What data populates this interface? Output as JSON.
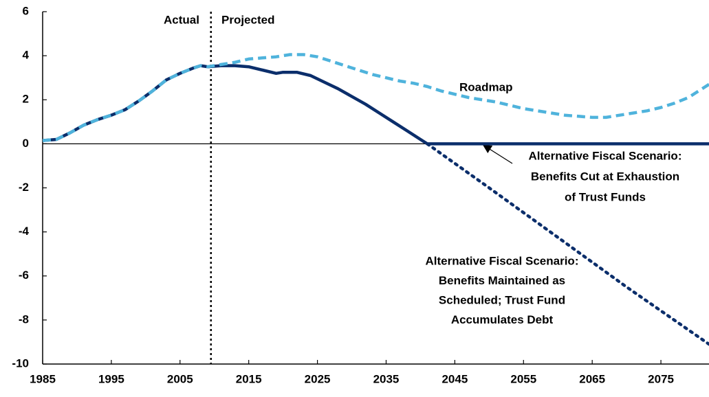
{
  "chart_data": {
    "type": "line",
    "xlim": [
      1985,
      2082
    ],
    "ylim": [
      -10,
      6
    ],
    "xticks": [
      1985,
      1995,
      2005,
      2015,
      2025,
      2035,
      2045,
      2055,
      2065,
      2075
    ],
    "yticks": [
      -10,
      -8,
      -6,
      -4,
      -2,
      0,
      2,
      4,
      6
    ],
    "divider_x": 2009.5,
    "series": [
      {
        "style": "solid",
        "color": "#0b2e6b",
        "x": [
          1985,
          1987,
          1989,
          1991,
          1993,
          1995,
          1997,
          1999,
          2001,
          2003,
          2005,
          2007,
          2008,
          2009,
          2011,
          2013,
          2015,
          2017,
          2019,
          2020,
          2022,
          2024,
          2026,
          2028,
          2030,
          2032,
          2034,
          2036,
          2038,
          2040,
          2041,
          2082
        ],
        "values": [
          0.15,
          0.2,
          0.5,
          0.85,
          1.1,
          1.3,
          1.55,
          1.95,
          2.4,
          2.9,
          3.2,
          3.45,
          3.55,
          3.5,
          3.55,
          3.55,
          3.5,
          3.35,
          3.2,
          3.25,
          3.25,
          3.1,
          2.8,
          2.5,
          2.15,
          1.8,
          1.4,
          1.0,
          0.6,
          0.2,
          0.0,
          0.0
        ]
      },
      {
        "style": "dotted",
        "color": "#0b2e6b",
        "x": [
          2041,
          2050,
          2060,
          2070,
          2082
        ],
        "values": [
          0.0,
          -2.0,
          -4.25,
          -6.5,
          -9.1
        ]
      },
      {
        "style": "dashed",
        "color": "#4fb3dc",
        "x": [
          1985,
          1987,
          1989,
          1991,
          1993,
          1995,
          1997,
          1999,
          2001,
          2003,
          2005,
          2007,
          2008,
          2009,
          2011,
          2013,
          2015,
          2017,
          2019,
          2021,
          2023,
          2025,
          2027,
          2029,
          2031,
          2033,
          2035,
          2037,
          2039,
          2041,
          2043,
          2045,
          2047,
          2049,
          2051,
          2053,
          2055,
          2057,
          2059,
          2061,
          2063,
          2065,
          2067,
          2069,
          2071,
          2073,
          2075,
          2077,
          2079,
          2081,
          2082
        ],
        "values": [
          0.15,
          0.2,
          0.5,
          0.85,
          1.1,
          1.3,
          1.55,
          1.95,
          2.4,
          2.9,
          3.2,
          3.45,
          3.55,
          3.5,
          3.6,
          3.7,
          3.85,
          3.9,
          3.95,
          4.05,
          4.05,
          3.95,
          3.75,
          3.55,
          3.35,
          3.15,
          3.0,
          2.85,
          2.75,
          2.6,
          2.4,
          2.25,
          2.1,
          2.0,
          1.9,
          1.75,
          1.6,
          1.5,
          1.4,
          1.3,
          1.25,
          1.2,
          1.2,
          1.3,
          1.4,
          1.5,
          1.65,
          1.85,
          2.1,
          2.5,
          2.7
        ]
      }
    ],
    "annotations": [
      {
        "lines": [
          "Actual"
        ]
      },
      {
        "lines": [
          "Projected"
        ]
      },
      {
        "lines": [
          "Roadmap"
        ]
      },
      {
        "lines": [
          "Alternative Fiscal Scenario:",
          "Benefits Cut at Exhaustion",
          "of Trust Funds"
        ]
      },
      {
        "lines": [
          "Alternative Fiscal Scenario:",
          "Benefits Maintained as",
          "Scheduled; Trust Fund",
          "Accumulates Debt"
        ]
      }
    ]
  }
}
